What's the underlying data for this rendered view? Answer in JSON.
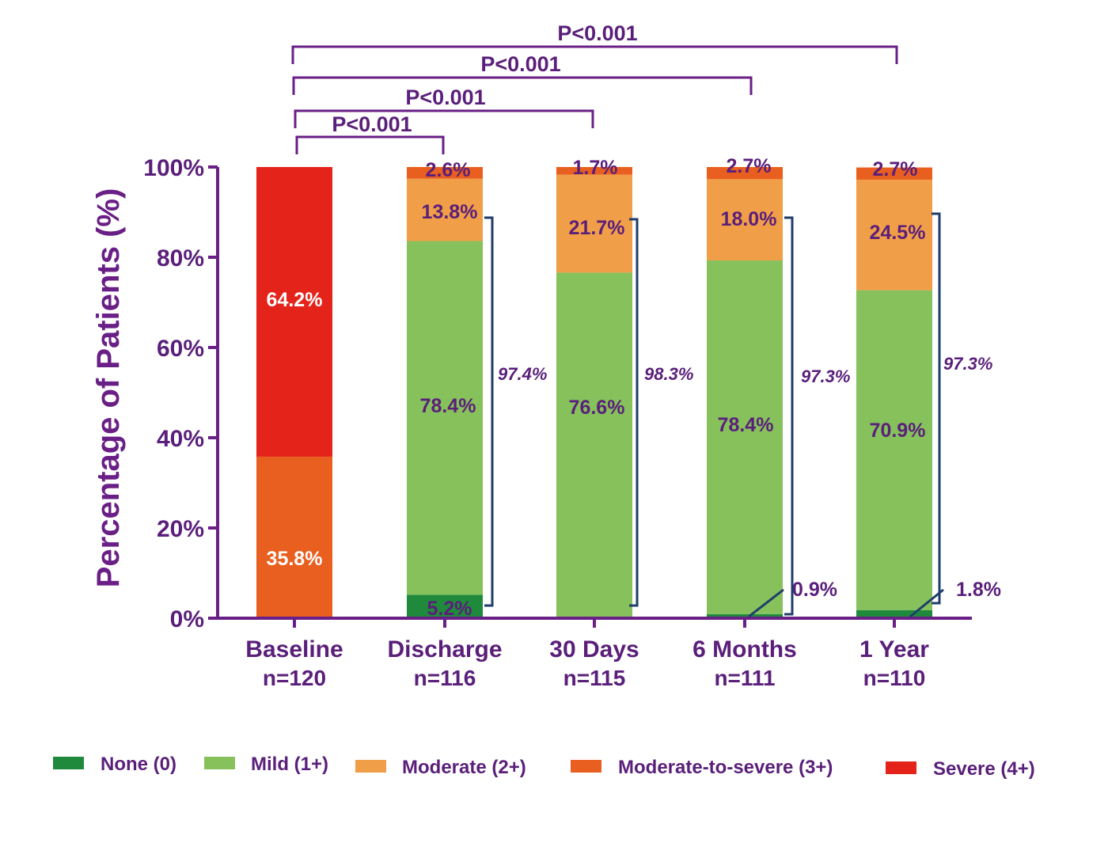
{
  "chart_data": {
    "type": "bar",
    "stacked": true,
    "ylabel": "Percentage of Patients (%)",
    "ylim": [
      0,
      100
    ],
    "yticks": [
      "0%",
      "20%",
      "40%",
      "60%",
      "80%",
      "100%"
    ],
    "categories": [
      {
        "label": "Baseline",
        "n": "n=120"
      },
      {
        "label": "Discharge",
        "n": "n=116"
      },
      {
        "label": "30 Days",
        "n": "n=115"
      },
      {
        "label": "6 Months",
        "n": "n=111"
      },
      {
        "label": "1 Year",
        "n": "n=110"
      }
    ],
    "series": [
      {
        "name": "None (0)",
        "color": "#1f8a3c",
        "values": [
          0,
          5.2,
          0,
          0.9,
          1.8
        ],
        "labels": [
          "",
          "5.2%",
          "",
          "0.9%",
          "1.8%"
        ]
      },
      {
        "name": "Mild (1+)",
        "color": "#86c15c",
        "values": [
          0,
          78.4,
          76.6,
          78.4,
          70.9
        ],
        "labels": [
          "",
          "78.4%",
          "76.6%",
          "78.4%",
          "70.9%"
        ]
      },
      {
        "name": "Moderate (2+)",
        "color": "#f19e48",
        "values": [
          0,
          13.8,
          21.7,
          18.0,
          24.5
        ],
        "labels": [
          "",
          "13.8%",
          "21.7%",
          "18.0%",
          "24.5%"
        ]
      },
      {
        "name": "Moderate-to-severe (3+)",
        "color": "#e95f1f",
        "values": [
          35.8,
          2.6,
          1.7,
          2.7,
          2.7
        ],
        "labels": [
          "35.8%",
          "2.6%",
          "1.7%",
          "2.7%",
          "2.7%"
        ]
      },
      {
        "name": "Severe (4+)",
        "color": "#e4231b",
        "values": [
          64.2,
          0,
          0,
          0,
          0
        ],
        "labels": [
          "64.2%",
          "",
          "",
          "",
          ""
        ]
      }
    ],
    "bracket_labels": [
      "",
      "97.4%",
      "98.3%",
      "97.3%",
      "97.3%"
    ],
    "comparisons": [
      {
        "from": "Baseline",
        "to": "Discharge",
        "label": "P<0.001"
      },
      {
        "from": "Baseline",
        "to": "30 Days",
        "label": "P<0.001"
      },
      {
        "from": "Baseline",
        "to": "6 Months",
        "label": "P<0.001"
      },
      {
        "from": "Baseline",
        "to": "1 Year",
        "label": "P<0.001"
      }
    ],
    "legend_position": "bottom",
    "grid": false
  },
  "colors": {
    "axis": "#6a1f86",
    "text": "#5a1f7a",
    "bracket": "#1f3d6b",
    "white_label": "#ffffff"
  }
}
